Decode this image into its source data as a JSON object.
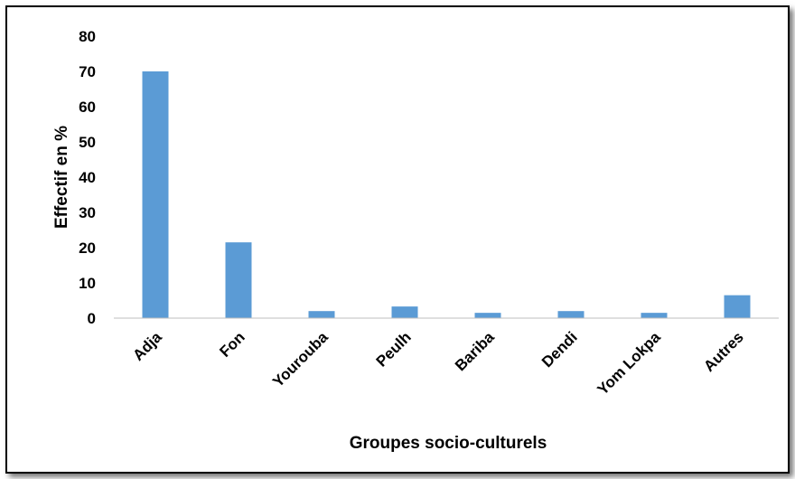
{
  "chart_data": {
    "type": "bar",
    "title": "",
    "xlabel": "Groupes socio-culturels",
    "ylabel": "Effectif en %",
    "categories": [
      "Adja",
      "Fon",
      "Yourouba",
      "Peulh",
      "Bariba",
      "Dendi",
      "Yom Lokpa",
      "Autres"
    ],
    "values": [
      70,
      21.5,
      2,
      3.3,
      1.5,
      2,
      1.5,
      6.5
    ],
    "ylim": [
      0,
      80
    ],
    "yticks": [
      0,
      10,
      20,
      30,
      40,
      50,
      60,
      70,
      80
    ],
    "grid": false,
    "legend": "none",
    "bar_color": "#5B9BD5"
  }
}
